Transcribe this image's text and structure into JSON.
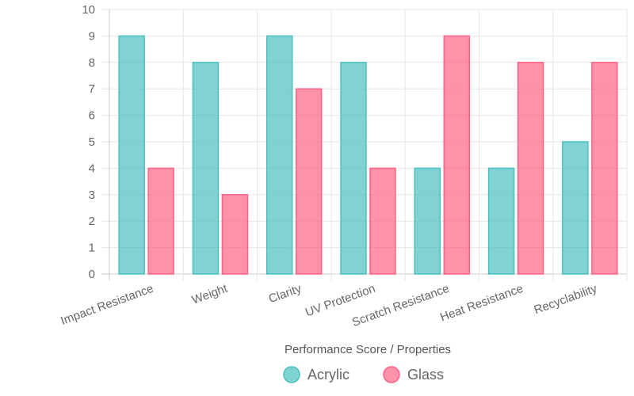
{
  "chart_data": {
    "type": "bar",
    "categories": [
      "Impact Resistance",
      "Weight",
      "Clarity",
      "UV Protection",
      "Scratch Resistance",
      "Heat Resistance",
      "Recyclability"
    ],
    "series": [
      {
        "name": "Acrylic",
        "values": [
          9,
          8,
          9,
          8,
          4,
          4,
          5
        ],
        "color": "#4bc0c0"
      },
      {
        "name": "Glass",
        "values": [
          4,
          3,
          7,
          4,
          9,
          8,
          8
        ],
        "color": "#ff6384"
      }
    ],
    "xlabel": "Performance Score / Properties",
    "ylabel": "",
    "ylim": [
      0,
      10
    ],
    "yticks": [
      "0",
      "1",
      "2",
      "3",
      "4",
      "5",
      "6",
      "7",
      "8",
      "9",
      "10"
    ],
    "grid": true,
    "legend_position": "bottom"
  }
}
